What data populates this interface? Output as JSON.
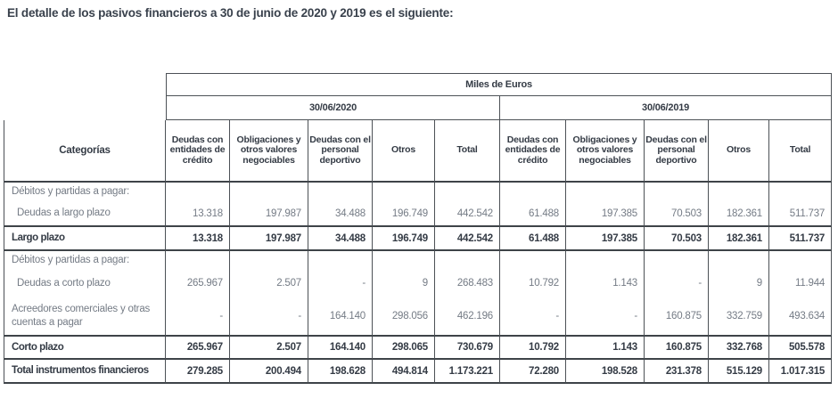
{
  "title": "El detalle de los pasivos financieros a 30 de junio de 2020 y 2019 es el siguiente:",
  "table": {
    "unit_header": "Miles de Euros",
    "categories_header": "Categorías",
    "groups": [
      {
        "label": "30/06/2020",
        "columns": [
          "Deudas con entidades de crédito",
          "Obligaciones y otros valores negociables",
          "Deudas con el personal deportivo",
          "Otros",
          "Total"
        ]
      },
      {
        "label": "30/06/2019",
        "columns": [
          "Deudas con entidades de crédito",
          "Obligaciones y otros valores negociables",
          "Deudas con el personal deportivo",
          "Otros",
          "Total"
        ]
      }
    ],
    "rows": [
      {
        "label": "Débitos y partidas a pagar:",
        "type": "section-head",
        "indent": false,
        "values": []
      },
      {
        "label": "Deudas a largo plazo",
        "type": "detail",
        "indent": true,
        "values": [
          "13.318",
          "197.987",
          "34.488",
          "196.749",
          "442.542",
          "61.488",
          "197.385",
          "70.503",
          "182.361",
          "511.737"
        ]
      },
      {
        "label": "Largo plazo",
        "type": "subtotal",
        "indent": false,
        "values": [
          "13.318",
          "197.987",
          "34.488",
          "196.749",
          "442.542",
          "61.488",
          "197.385",
          "70.503",
          "182.361",
          "511.737"
        ]
      },
      {
        "label": "Débitos y partidas a pagar:",
        "type": "section-head",
        "indent": false,
        "values": []
      },
      {
        "label": "Deudas a corto plazo",
        "type": "detail",
        "indent": true,
        "values": [
          "265.967",
          "2.507",
          "-",
          "9",
          "268.483",
          "10.792",
          "1.143",
          "-",
          "9",
          "11.944"
        ]
      },
      {
        "label": "Acreedores comerciales y otras cuentas a pagar",
        "type": "detail",
        "indent": false,
        "values": [
          "-",
          "-",
          "164.140",
          "298.056",
          "462.196",
          "-",
          "-",
          "160.875",
          "332.759",
          "493.634"
        ]
      },
      {
        "label": "Corto plazo",
        "type": "subtotal",
        "indent": false,
        "values": [
          "265.967",
          "2.507",
          "164.140",
          "298.065",
          "730.679",
          "10.792",
          "1.143",
          "160.875",
          "332.768",
          "505.578"
        ]
      },
      {
        "label": "Total instrumentos financieros",
        "type": "total",
        "indent": false,
        "values": [
          "279.285",
          "200.494",
          "198.628",
          "494.814",
          "1.173.221",
          "72.280",
          "198.528",
          "231.378",
          "515.129",
          "1.017.315"
        ]
      }
    ]
  },
  "colors": {
    "text_dark": "#343b45",
    "text_gray": "#747b85",
    "border": "#4c5156",
    "background": "#ffffff"
  }
}
